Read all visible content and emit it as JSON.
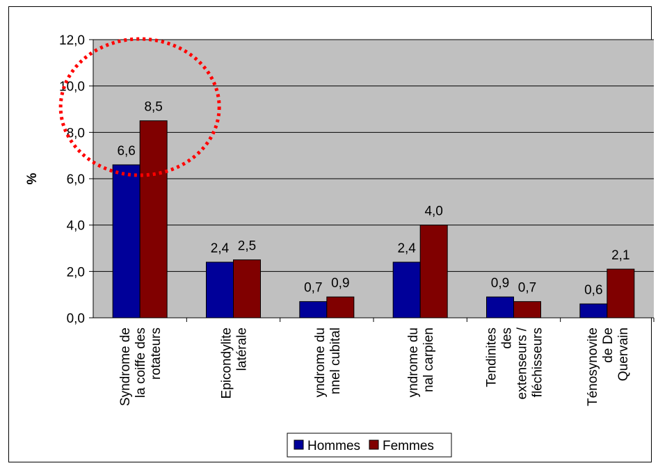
{
  "chart_data": {
    "type": "bar",
    "categories": [
      [
        "Syndrome de",
        "la coiffe des",
        "rotateurs"
      ],
      [
        "Epicondylite",
        "latérale"
      ],
      [
        "yndrome du",
        "nnel cubital"
      ],
      [
        "yndrome du",
        "nal carpien"
      ],
      [
        "Tendinites",
        "des",
        "extenseurs /",
        "fléchisseurs"
      ],
      [
        "Ténosynovite",
        "de De",
        "Quervain"
      ]
    ],
    "series": [
      {
        "name": "Hommes",
        "color": "#000099",
        "values": [
          6.6,
          2.4,
          0.7,
          2.4,
          0.9,
          0.6
        ],
        "labels": [
          "6,6",
          "2,4",
          "0,7",
          "2,4",
          "0,9",
          "0,6"
        ]
      },
      {
        "name": "Femmes",
        "color": "#800000",
        "values": [
          8.5,
          2.5,
          0.9,
          4.0,
          0.7,
          2.1
        ],
        "labels": [
          "8,5",
          "2,5",
          "0,9",
          "4,0",
          "0,7",
          "2,1"
        ]
      }
    ],
    "ylabel": "%",
    "ylim": [
      0,
      12
    ],
    "yticks": [
      0,
      2,
      4,
      6,
      8,
      10,
      12
    ],
    "ytick_labels": [
      "0,0",
      "2,0",
      "4,0",
      "6,0",
      "8,0",
      "10,0",
      "12,0"
    ],
    "plot_background": "#c0c0c0",
    "grid": true,
    "legend_position": "bottom",
    "annotation": {
      "shape": "dotted-ellipse",
      "color": "#ff0000",
      "highlights_category": 0
    }
  }
}
